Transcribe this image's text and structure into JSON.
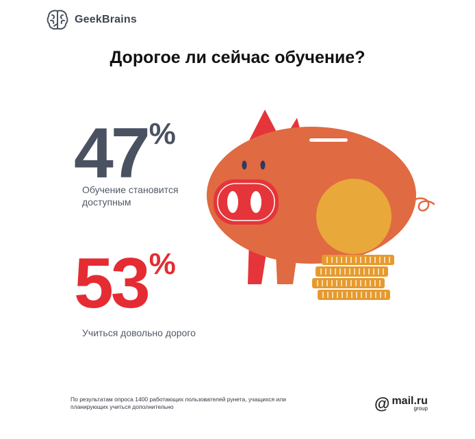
{
  "logo": {
    "name": "GeekBrains"
  },
  "title": "Дорогое ли сейчас обучение?",
  "stats": [
    {
      "value": "47",
      "unit": "%",
      "label": "Обучение становится доступным",
      "color": "#4a5261"
    },
    {
      "value": "53",
      "unit": "%",
      "label": "Учиться довольно дорого",
      "color": "#e52c33"
    }
  ],
  "footnote": "По результатам опроса 1400 работающих пользователей рунета, учащихся или планирующих учиться дополнительно",
  "partner": {
    "at": "@",
    "name": "mail.ru",
    "sub": "group"
  },
  "colors": {
    "pig": "#e06a42",
    "ears": "#e5353a",
    "coin": "#e9a83a",
    "coin_stack": "#e69a2e"
  }
}
